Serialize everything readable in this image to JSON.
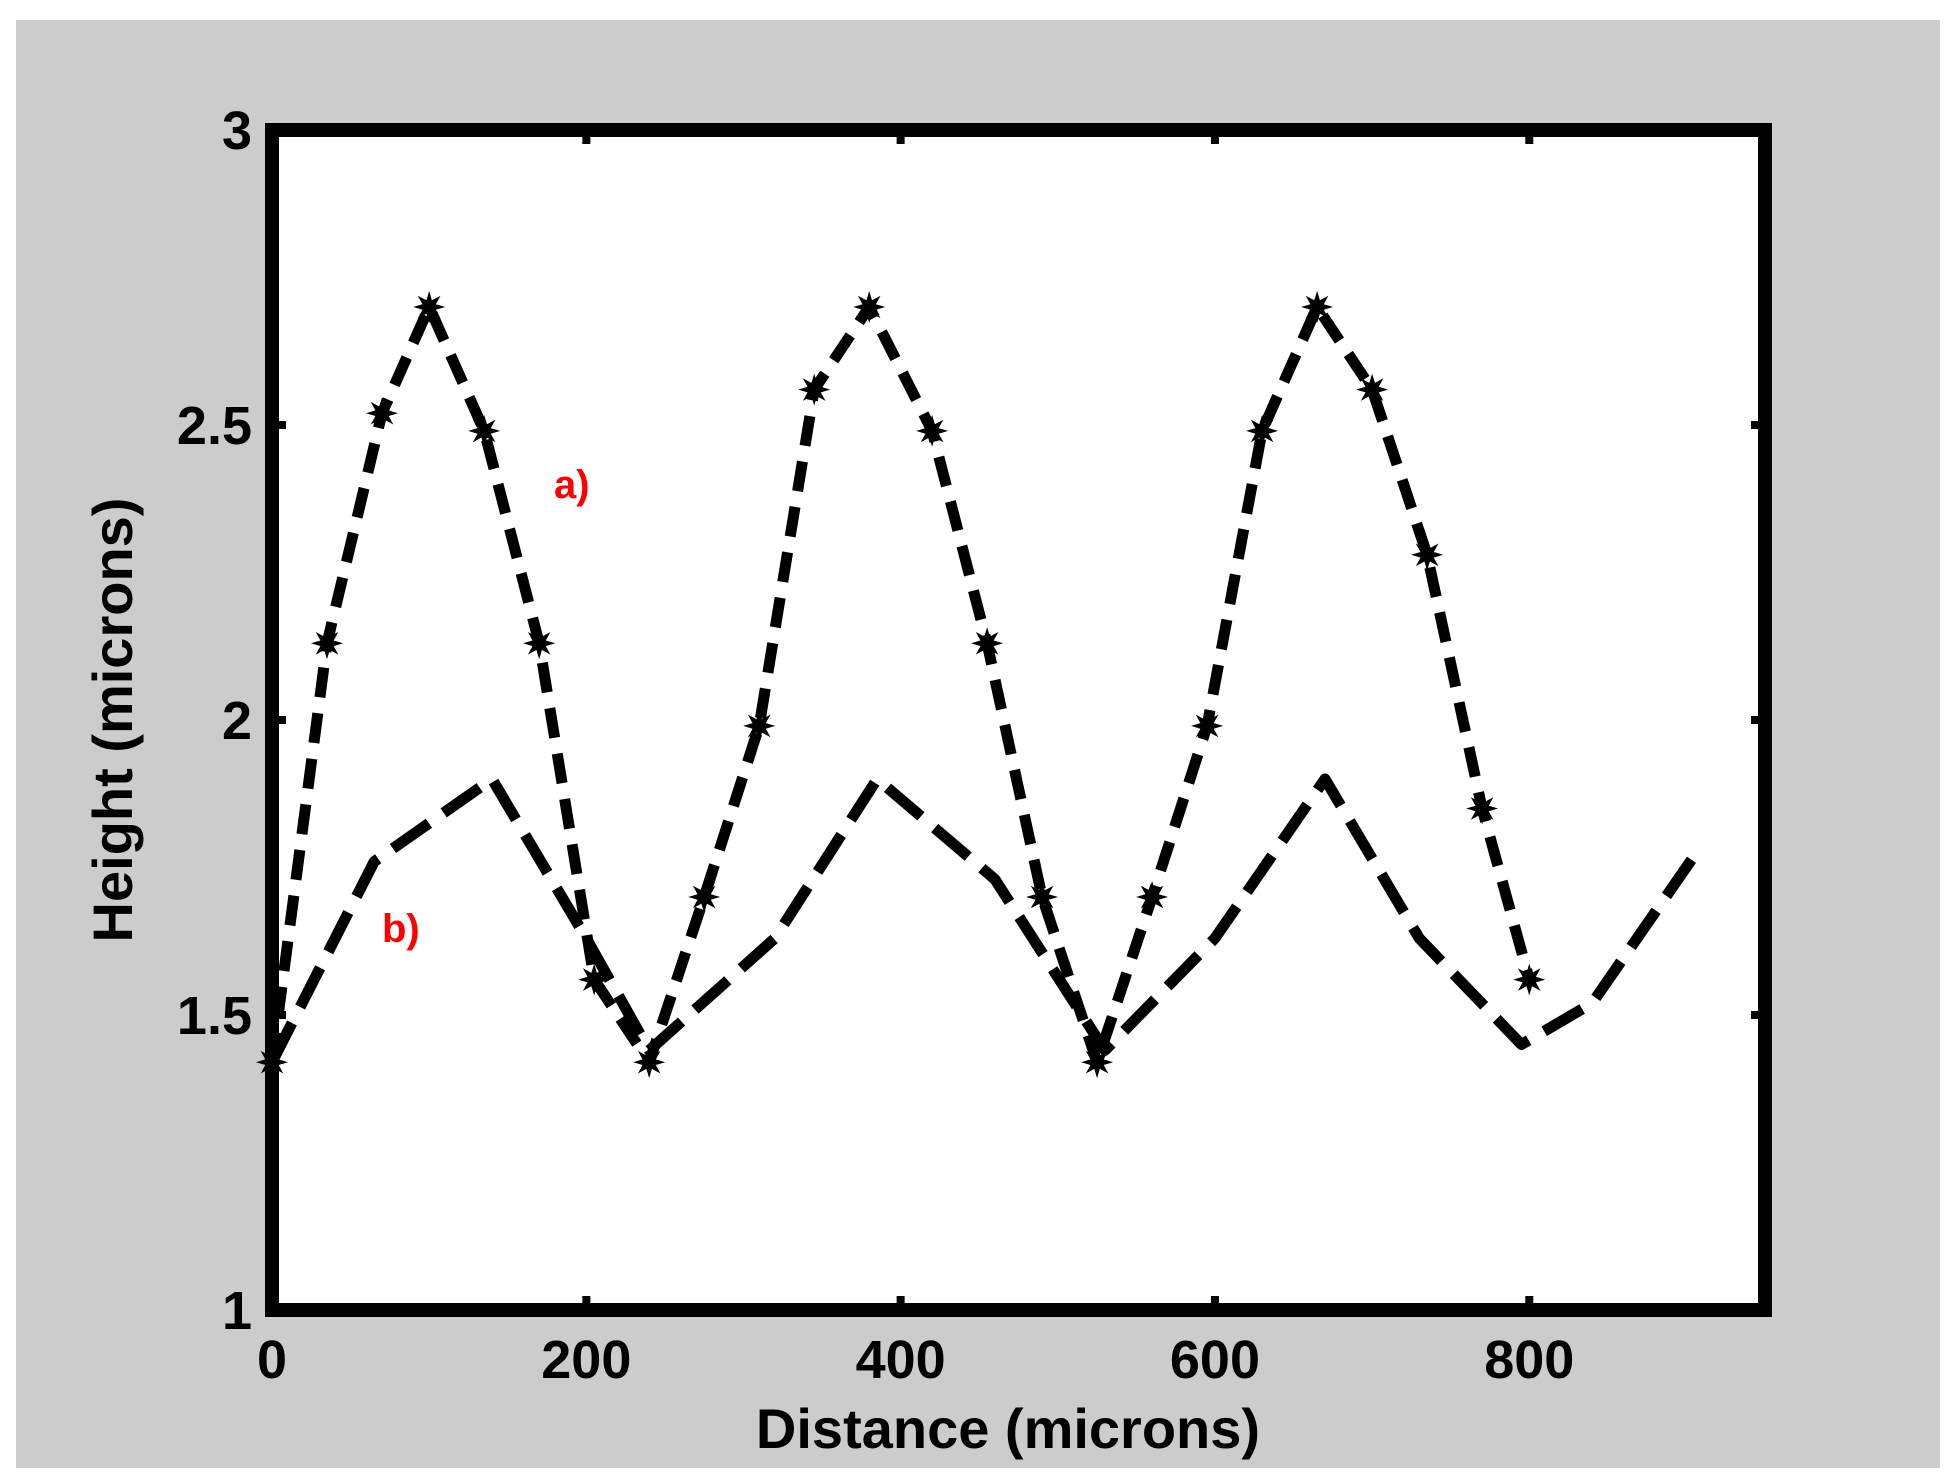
{
  "chart_data": {
    "type": "line",
    "xlabel": "Distance (microns)",
    "ylabel": "Height (microns)",
    "xlim": [
      0,
      950
    ],
    "ylim": [
      1,
      3
    ],
    "xticks": [
      0,
      200,
      400,
      600,
      800
    ],
    "xtick_labels": [
      "0",
      "200",
      "400",
      "600",
      "800"
    ],
    "yticks": [
      1,
      1.5,
      2,
      2.5,
      3
    ],
    "ytick_labels": [
      "1",
      "1.5",
      "2",
      "2.5",
      "3"
    ],
    "grid": false,
    "legend": "none",
    "colors": {
      "background": "#cccccc",
      "plot_area": "#ffffff",
      "axes": "#000000",
      "series_line": "#000000",
      "series_label": "#ff0000"
    },
    "series": [
      {
        "name": "a)",
        "line_style": "dashed",
        "marker": "star",
        "x": [
          0,
          35,
          70,
          100,
          135,
          170,
          205,
          240,
          275,
          310,
          345,
          380,
          420,
          455,
          490,
          525,
          560,
          595,
          630,
          665,
          700,
          735,
          770,
          800
        ],
        "y": [
          1.42,
          2.13,
          2.52,
          2.7,
          2.49,
          2.13,
          1.56,
          1.42,
          1.7,
          1.99,
          2.56,
          2.7,
          2.49,
          2.13,
          1.7,
          1.42,
          1.7,
          1.99,
          2.49,
          2.7,
          2.56,
          2.28,
          1.85,
          1.56
        ]
      },
      {
        "name": "b)",
        "line_style": "dashed",
        "marker": "none",
        "x": [
          0,
          65,
          140,
          200,
          240,
          320,
          385,
          460,
          530,
          600,
          670,
          730,
          795,
          840,
          905
        ],
        "y": [
          1.42,
          1.76,
          1.9,
          1.63,
          1.44,
          1.63,
          1.9,
          1.73,
          1.44,
          1.63,
          1.9,
          1.63,
          1.45,
          1.52,
          1.77
        ]
      }
    ]
  }
}
